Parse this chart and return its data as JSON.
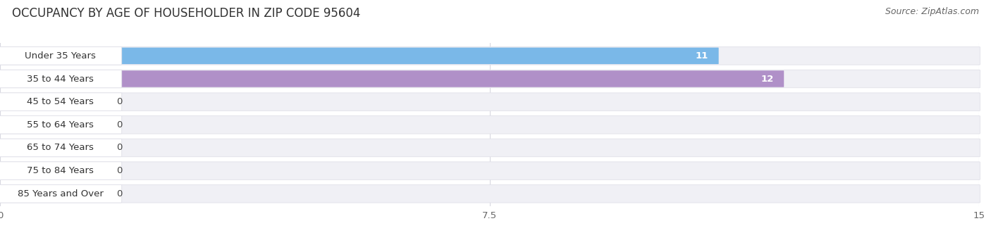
{
  "title": "OCCUPANCY BY AGE OF HOUSEHOLDER IN ZIP CODE 95604",
  "source": "Source: ZipAtlas.com",
  "categories": [
    "Under 35 Years",
    "35 to 44 Years",
    "45 to 54 Years",
    "55 to 64 Years",
    "65 to 74 Years",
    "75 to 84 Years",
    "85 Years and Over"
  ],
  "values": [
    11,
    12,
    0,
    0,
    0,
    0,
    0
  ],
  "bar_colors": [
    "#7AB8E8",
    "#B090C8",
    "#6ECEC0",
    "#A8A8DC",
    "#F4A0B0",
    "#F8C888",
    "#F4A898"
  ],
  "row_bg_color": "#F0F0F5",
  "row_bg_edge": "#E0E0E8",
  "label_bg_color": "#FFFFFF",
  "label_bg_edge": "#E0E0E8",
  "xlim": [
    0,
    15
  ],
  "xticks": [
    0,
    7.5,
    15
  ],
  "title_fontsize": 12,
  "source_fontsize": 9,
  "label_fontsize": 9.5,
  "tick_fontsize": 9.5,
  "value_fontsize": 9.5
}
